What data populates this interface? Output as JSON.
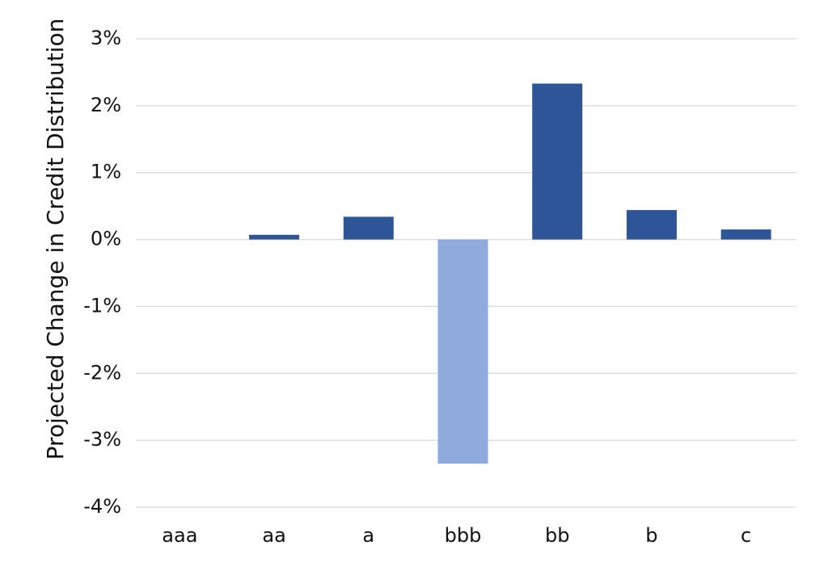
{
  "chart_data": {
    "type": "bar",
    "y_label": "Projected Change in Credit Distribution",
    "categories": [
      "aaa",
      "aa",
      "a",
      "bbb",
      "bb",
      "b",
      "c"
    ],
    "values": [
      0,
      0.07,
      0.34,
      -3.35,
      2.33,
      0.44,
      0.15
    ],
    "color": "#2e5597",
    "negative_color": "#8faadc",
    "ylim": [
      -4,
      3
    ],
    "yticks": [
      {
        "value": -4,
        "label": "-4%"
      },
      {
        "value": -3,
        "label": "-3%"
      },
      {
        "value": -2,
        "label": "-2%"
      },
      {
        "value": -1,
        "label": "-1%"
      },
      {
        "value": 0,
        "label": "0%"
      },
      {
        "value": 1,
        "label": "1%"
      },
      {
        "value": 2,
        "label": "2%"
      },
      {
        "value": 3,
        "label": "3%"
      }
    ],
    "grid": true
  }
}
